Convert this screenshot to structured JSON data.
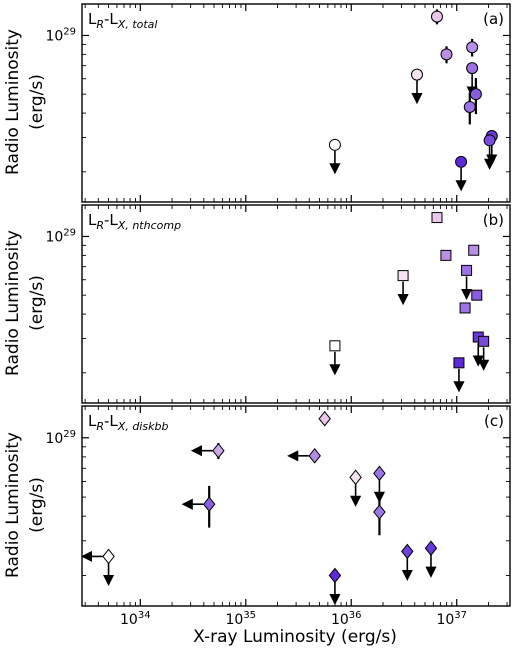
{
  "figure": {
    "xlabel": "X-ray Luminosity (erg/s)",
    "ylabel_line1": "Radio Luminosity",
    "ylabel_line2": "(erg/s)",
    "x_tick_labels": [
      "10",
      "10",
      "10",
      "10"
    ],
    "x_tick_exponents": [
      "34",
      "35",
      "36",
      "37"
    ],
    "y_tick_label": "10",
    "y_tick_exponent": "29"
  },
  "chart_data": [
    {
      "type": "scatter",
      "panel_tag": "(a)",
      "label_main": "L",
      "label_sub1": "R",
      "label_mid": "-L",
      "label_sub2": "X, total",
      "marker": "circle",
      "xscale": "log",
      "yscale": "log",
      "xlim": [
        2.8e+33,
        3.2e+37
      ],
      "ylim": [
        1.4e+28,
        1.45e+29
      ],
      "points": [
        {
          "x": 7e+35,
          "y": 2.75e+28,
          "color": "#ffffff",
          "upper_limit": true
        },
        {
          "x": 4.2e+36,
          "y": 6.3e+28,
          "color": "#f7e3f3",
          "upper_limit": true
        },
        {
          "x": 6.5e+36,
          "y": 1.25e+29,
          "color": "#eac5ec",
          "yerr": 1.1e+28
        },
        {
          "x": 8e+36,
          "y": 8e+28,
          "color": "#ba8fe6",
          "yerr": 8e+27
        },
        {
          "x": 1.4e+37,
          "y": 8.7e+28,
          "color": "#b98ee8",
          "yerr": 9e+27
        },
        {
          "x": 1.4e+37,
          "y": 6.8e+28,
          "color": "#9e72e4",
          "upper_limit": true
        },
        {
          "x": 1.33e+37,
          "y": 4.3e+28,
          "color": "#9d74e6",
          "yerr": 8e+27
        },
        {
          "x": 1.52e+37,
          "y": 5e+28,
          "color": "#8a5ce0",
          "yerr": 1.05e+28
        },
        {
          "x": 1.1e+37,
          "y": 2.25e+28,
          "color": "#5c2ad8",
          "upper_limit": true
        },
        {
          "x": 2.15e+37,
          "y": 3.05e+28,
          "color": "#6a38d8",
          "upper_limit": true
        },
        {
          "x": 2.05e+37,
          "y": 2.9e+28,
          "color": "#7a4ade",
          "upper_limit": true
        }
      ]
    },
    {
      "type": "scatter",
      "panel_tag": "(b)",
      "label_main": "L",
      "label_sub1": "R",
      "label_mid": "-L",
      "label_sub2": "X, nthcomp",
      "marker": "square",
      "xscale": "log",
      "yscale": "log",
      "xlim": [
        2.8e+33,
        3.2e+37
      ],
      "ylim": [
        1.4e+28,
        1.45e+29
      ],
      "points": [
        {
          "x": 7e+35,
          "y": 2.75e+28,
          "color": "#ffffff",
          "upper_limit": true
        },
        {
          "x": 3.1e+36,
          "y": 6.3e+28,
          "color": "#f7e3f3",
          "upper_limit": true
        },
        {
          "x": 6.5e+36,
          "y": 1.25e+29,
          "color": "#eac5ec"
        },
        {
          "x": 7.9e+36,
          "y": 8e+28,
          "color": "#ba8fe6"
        },
        {
          "x": 1.45e+37,
          "y": 8.5e+28,
          "color": "#b98ee8"
        },
        {
          "x": 1.24e+37,
          "y": 6.7e+28,
          "color": "#9e72e4",
          "upper_limit": true
        },
        {
          "x": 1.2e+37,
          "y": 4.3e+28,
          "color": "#9d74e6"
        },
        {
          "x": 1.55e+37,
          "y": 5e+28,
          "color": "#8a5ce0"
        },
        {
          "x": 1.6e+37,
          "y": 3.05e+28,
          "color": "#6a38d8",
          "upper_limit": true
        },
        {
          "x": 1.8e+37,
          "y": 2.9e+28,
          "color": "#7a4ade",
          "upper_limit": true
        },
        {
          "x": 1.05e+37,
          "y": 2.25e+28,
          "color": "#5c2ad8",
          "upper_limit": true
        }
      ]
    },
    {
      "type": "scatter",
      "panel_tag": "(c)",
      "label_main": "L",
      "label_sub1": "R",
      "label_mid": "-L",
      "label_sub2": "X, diskbb",
      "marker": "diamond",
      "xscale": "log",
      "yscale": "log",
      "xlim": [
        2.8e+33,
        3.2e+37
      ],
      "ylim": [
        1.4e+28,
        1.45e+29
      ],
      "points": [
        {
          "x": 5e+33,
          "y": 2.5e+28,
          "color": "#ffffff",
          "upper_limit": true,
          "x_upper_limit": true
        },
        {
          "x": 1.1e+36,
          "y": 6.3e+28,
          "color": "#f7e3f3",
          "upper_limit": true
        },
        {
          "x": 5.6e+35,
          "y": 1.25e+29,
          "color": "#eac5ec",
          "yerr": 5e+27
        },
        {
          "x": 5.5e+34,
          "y": 8.6e+28,
          "color": "#c9a7ea",
          "yerr": 8e+27,
          "x_upper_limit": true
        },
        {
          "x": 4.5e+35,
          "y": 8.1e+28,
          "color": "#b48ce6",
          "yerr": 6e+27,
          "x_upper_limit": true
        },
        {
          "x": 1.85e+36,
          "y": 6.6e+28,
          "color": "#9d74e6",
          "upper_limit": true
        },
        {
          "x": 1.85e+36,
          "y": 4.2e+28,
          "color": "#9c76e4",
          "yerr": 1e+28
        },
        {
          "x": 4.5e+34,
          "y": 4.6e+28,
          "color": "#8b5de0",
          "yerr": 1.1e+28,
          "x_upper_limit": true
        },
        {
          "x": 3.4e+36,
          "y": 2.65e+28,
          "color": "#7040dc",
          "upper_limit": true
        },
        {
          "x": 5.7e+36,
          "y": 2.75e+28,
          "color": "#6b38da",
          "upper_limit": true
        },
        {
          "x": 7e+35,
          "y": 2e+28,
          "color": "#5c2ad8",
          "upper_limit": true
        }
      ]
    }
  ]
}
